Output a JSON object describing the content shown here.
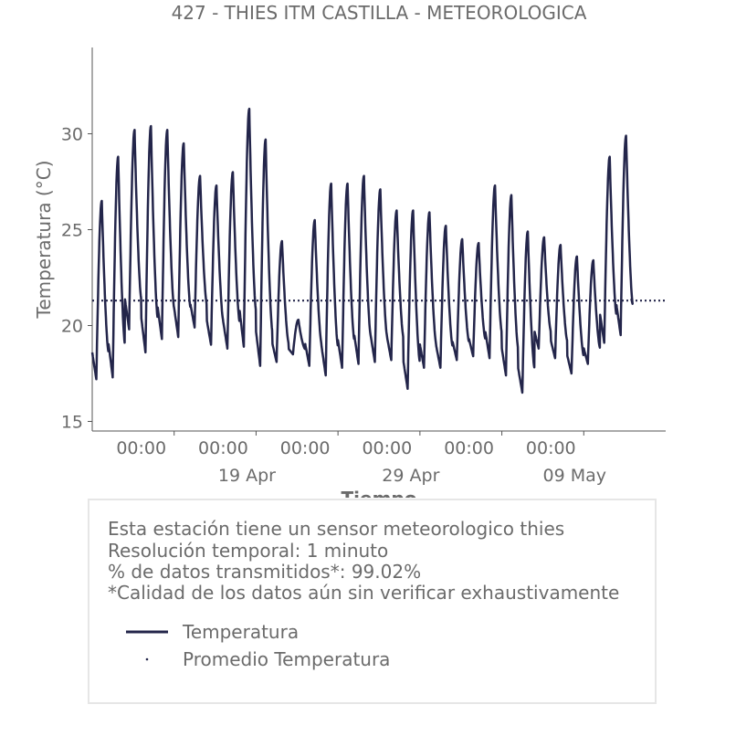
{
  "chart_data": {
    "type": "line",
    "title": "427 - THIES ITM CASTILLA - METEOROLOGICA",
    "xlabel": "Tiempo",
    "ylabel": "Temperatura (°C)",
    "y_ticks": [
      15,
      20,
      25,
      30
    ],
    "ylim": [
      14.5,
      34.5
    ],
    "xlim": [
      "2024-04-09",
      "2024-05-14"
    ],
    "x_ticks": [
      {
        "date": "2024-04-14",
        "time_label": "00:00",
        "date_label": ""
      },
      {
        "date": "2024-04-19",
        "time_label": "00:00",
        "date_label": "19 Apr"
      },
      {
        "date": "2024-04-24",
        "time_label": "00:00",
        "date_label": ""
      },
      {
        "date": "2024-04-29",
        "time_label": "00:00",
        "date_label": "29 Apr"
      },
      {
        "date": "2024-05-04",
        "time_label": "00:00",
        "date_label": ""
      },
      {
        "date": "2024-05-09",
        "time_label": "00:00",
        "date_label": "09 May"
      }
    ],
    "grid": false,
    "series": [
      {
        "name": "Temperatura",
        "style": "solid",
        "color": "#23254a",
        "daily": [
          {
            "date": "2024-04-09",
            "max": 26.5,
            "min": 17.2
          },
          {
            "date": "2024-04-10",
            "max": 28.8,
            "min": 17.3
          },
          {
            "date": "2024-04-11",
            "max": 30.2,
            "min": 19.8
          },
          {
            "date": "2024-04-12",
            "max": 30.4,
            "min": 18.6
          },
          {
            "date": "2024-04-13",
            "max": 30.2,
            "min": 19.3
          },
          {
            "date": "2024-04-14",
            "max": 29.5,
            "min": 19.4
          },
          {
            "date": "2024-04-15",
            "max": 27.8,
            "min": 19.9
          },
          {
            "date": "2024-04-16",
            "max": 27.3,
            "min": 19.0
          },
          {
            "date": "2024-04-17",
            "max": 28.0,
            "min": 18.8
          },
          {
            "date": "2024-04-18",
            "max": 31.3,
            "min": 18.9
          },
          {
            "date": "2024-04-19",
            "max": 29.7,
            "min": 17.9
          },
          {
            "date": "2024-04-20",
            "max": 24.4,
            "min": 18.1
          },
          {
            "date": "2024-04-21",
            "max": 20.3,
            "min": 18.5
          },
          {
            "date": "2024-04-22",
            "max": 25.5,
            "min": 17.9
          },
          {
            "date": "2024-04-23",
            "max": 27.4,
            "min": 17.4
          },
          {
            "date": "2024-04-24",
            "max": 27.4,
            "min": 17.8
          },
          {
            "date": "2024-04-25",
            "max": 27.8,
            "min": 18.0
          },
          {
            "date": "2024-04-26",
            "max": 27.1,
            "min": 18.1
          },
          {
            "date": "2024-04-27",
            "max": 26.0,
            "min": 18.2
          },
          {
            "date": "2024-04-28",
            "max": 26.0,
            "min": 16.7
          },
          {
            "date": "2024-04-29",
            "max": 25.9,
            "min": 17.8
          },
          {
            "date": "2024-04-30",
            "max": 25.2,
            "min": 17.8
          },
          {
            "date": "2024-05-01",
            "max": 24.5,
            "min": 18.2
          },
          {
            "date": "2024-05-02",
            "max": 24.3,
            "min": 18.4
          },
          {
            "date": "2024-05-03",
            "max": 27.3,
            "min": 18.3
          },
          {
            "date": "2024-05-04",
            "max": 26.8,
            "min": 17.4
          },
          {
            "date": "2024-05-05",
            "max": 24.9,
            "min": 16.5
          },
          {
            "date": "2024-05-06",
            "max": 24.6,
            "min": 18.8
          },
          {
            "date": "2024-05-07",
            "max": 24.2,
            "min": 18.3
          },
          {
            "date": "2024-05-08",
            "max": 23.6,
            "min": 17.5
          },
          {
            "date": "2024-05-09",
            "max": 23.4,
            "min": 18.0
          },
          {
            "date": "2024-05-10",
            "max": 28.8,
            "min": 19.1
          },
          {
            "date": "2024-05-11",
            "max": 29.9,
            "min": 19.5
          }
        ]
      },
      {
        "name": "Promedio Temperatura",
        "style": "dotted",
        "color": "#23254a",
        "value": 21.3
      }
    ]
  },
  "info": {
    "lines": [
      "Esta estación tiene un sensor meteorologico thies",
      "Resolución temporal: 1 minuto",
      "% de datos transmitidos*: 99.02%",
      "*Calidad de los datos aún sin verificar exhaustivamente"
    ],
    "legend": [
      {
        "label": "Temperatura"
      },
      {
        "label": "Promedio Temperatura"
      }
    ]
  }
}
